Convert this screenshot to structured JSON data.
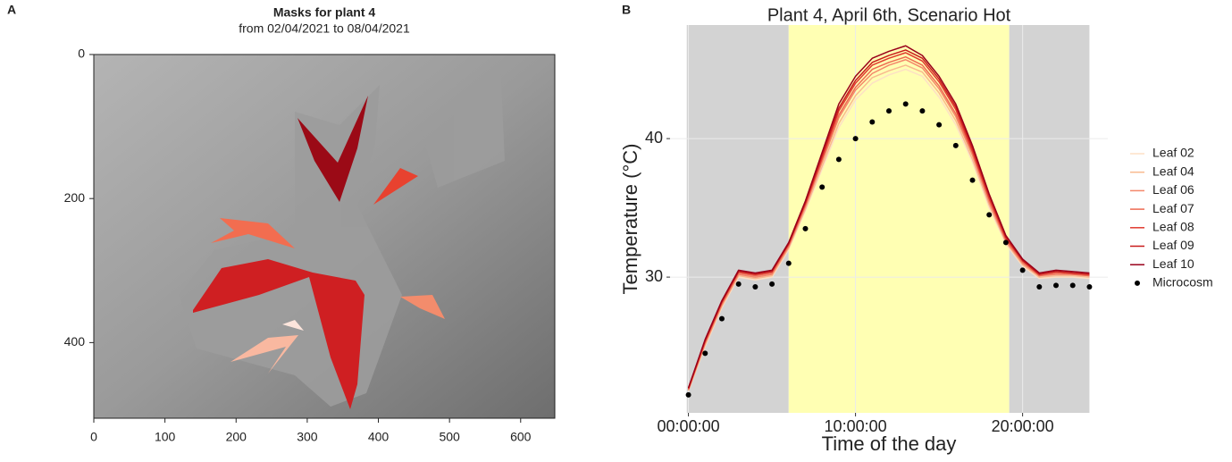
{
  "chart_data": [
    {
      "type": "image",
      "panel": "A",
      "title": "Masks for plant 4",
      "subtitle": "from 02/04/2021 to 08/04/2021",
      "xlim": [
        0,
        648
      ],
      "xticks": [
        0,
        100,
        200,
        300,
        400,
        500,
        600
      ],
      "ylim": [
        0,
        505
      ],
      "yticks": [
        0,
        200,
        400
      ],
      "y_inverted": true
    },
    {
      "type": "line",
      "panel": "B",
      "title": "Plant 4, April 6th, Scenario Hot",
      "x_label": "Time of the day",
      "y_label": "Temperature (°C)",
      "x": [
        0,
        1,
        2,
        3,
        4,
        5,
        6,
        7,
        8,
        9,
        10,
        11,
        12,
        13,
        14,
        15,
        16,
        17,
        18,
        19,
        20,
        21,
        22,
        23,
        24
      ],
      "xlim": [
        -1.1,
        25.1
      ],
      "xticks": [
        {
          "value": 0,
          "label": "00:00:00"
        },
        {
          "value": 10,
          "label": "10:00:00"
        },
        {
          "value": 20,
          "label": "20:00:00"
        }
      ],
      "ylim": [
        20.2,
        48.2
      ],
      "yticks": [
        30,
        40
      ],
      "grid": true,
      "legend": "right",
      "bands": [
        {
          "from": -0.1,
          "to": 6,
          "color": "#d3d3d3"
        },
        {
          "from": 6,
          "to": 19.2,
          "color": "#ffffb3"
        },
        {
          "from": 19.2,
          "to": 24,
          "color": "#d3d3d3"
        }
      ],
      "series": [
        {
          "name": "Leaf 02",
          "color": "#fde0c5",
          "style": "line",
          "values": [
            21.8,
            25,
            27.8,
            30,
            29.8,
            30,
            32,
            34.8,
            37.8,
            40.8,
            42.8,
            44,
            44.6,
            45,
            44.5,
            43,
            41,
            38.3,
            35,
            32.4,
            30.8,
            29.9,
            30,
            30,
            29.9
          ]
        },
        {
          "name": "Leaf 04",
          "color": "#f9b98f",
          "style": "line",
          "values": [
            21.8,
            25.1,
            27.9,
            30.1,
            29.9,
            30.1,
            32.1,
            34.9,
            38,
            41.1,
            43.1,
            44.4,
            44.9,
            45.3,
            44.8,
            43.3,
            41.3,
            38.5,
            35.2,
            32.5,
            30.9,
            30,
            30.1,
            30.1,
            30
          ]
        },
        {
          "name": "Leaf 06",
          "color": "#f4876b",
          "style": "line",
          "values": [
            21.9,
            25.2,
            28,
            30.2,
            30,
            30.2,
            32.2,
            35.1,
            38.3,
            41.5,
            43.5,
            44.7,
            45.3,
            45.7,
            45.1,
            43.6,
            41.6,
            38.8,
            35.4,
            32.6,
            31,
            30.1,
            30.2,
            30.2,
            30.1
          ]
        },
        {
          "name": "Leaf 07",
          "color": "#ee6a52",
          "style": "line",
          "values": [
            21.9,
            25.3,
            28.1,
            30.3,
            30.1,
            30.3,
            32.3,
            35.2,
            38.5,
            41.7,
            43.7,
            45,
            45.5,
            45.9,
            45.3,
            43.8,
            41.8,
            39,
            35.6,
            32.7,
            31.1,
            30.1,
            30.3,
            30.2,
            30.1
          ]
        },
        {
          "name": "Leaf 08",
          "color": "#e03a2f",
          "style": "line",
          "values": [
            21.9,
            25.4,
            28.2,
            30.4,
            30.2,
            30.4,
            32.4,
            35.3,
            38.6,
            42,
            44,
            45.3,
            45.8,
            46.2,
            45.6,
            44.1,
            42.1,
            39.1,
            35.7,
            32.8,
            31.2,
            30.2,
            30.4,
            30.3,
            30.2
          ]
        },
        {
          "name": "Leaf 09",
          "color": "#c81b1b",
          "style": "line",
          "values": [
            22,
            25.4,
            28.2,
            30.4,
            30.2,
            30.4,
            32.4,
            35.4,
            38.8,
            42.2,
            44.2,
            45.5,
            46,
            46.4,
            45.8,
            44.3,
            42.3,
            39.3,
            35.9,
            32.9,
            31.2,
            30.2,
            30.4,
            30.3,
            30.2
          ]
        },
        {
          "name": "Leaf 10",
          "color": "#99001a",
          "style": "line",
          "values": [
            22,
            25.5,
            28.3,
            30.5,
            30.3,
            30.5,
            32.5,
            35.5,
            39,
            42.5,
            44.5,
            45.8,
            46.3,
            46.7,
            46,
            44.5,
            42.5,
            39.5,
            36,
            33,
            31.3,
            30.3,
            30.5,
            30.4,
            30.3
          ]
        },
        {
          "name": "Microcosm",
          "color": "#000000",
          "style": "points",
          "values": [
            21.5,
            24.5,
            27,
            29.5,
            29.3,
            29.5,
            31,
            33.5,
            36.5,
            38.5,
            40,
            41.2,
            42,
            42.5,
            42,
            41,
            39.5,
            37,
            34.5,
            32.5,
            30.5,
            29.3,
            29.4,
            29.4,
            29.3
          ]
        }
      ]
    }
  ]
}
